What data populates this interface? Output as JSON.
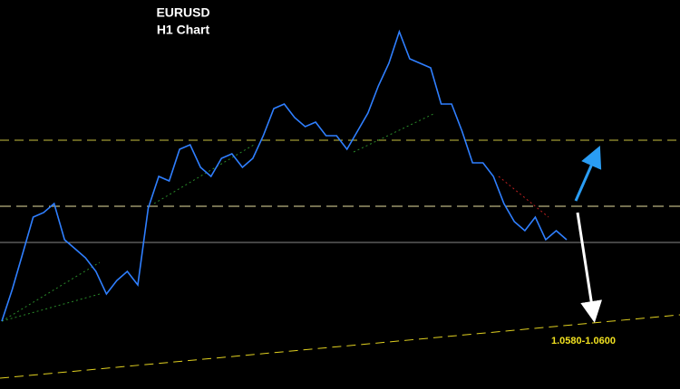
{
  "chart_data": {
    "type": "line",
    "title": "EURUSD",
    "subtitle": "H1 Chart",
    "annotation": "1.0580-1.0600",
    "color": "#2f7fff",
    "ylim": [
      1.0515,
      1.0945
    ],
    "values": [
      1.059,
      1.0625,
      1.0665,
      1.0705,
      1.071,
      1.072,
      1.068,
      1.067,
      1.066,
      1.0645,
      1.062,
      1.0635,
      1.0645,
      1.063,
      1.0715,
      1.075,
      1.0745,
      1.078,
      1.0785,
      1.076,
      1.075,
      1.077,
      1.0775,
      1.076,
      1.077,
      1.0795,
      1.0825,
      1.083,
      1.0815,
      1.0805,
      1.081,
      1.0795,
      1.0795,
      1.078,
      1.08,
      1.082,
      1.085,
      1.0875,
      1.091,
      1.088,
      1.0875,
      1.087,
      1.083,
      1.083,
      1.08,
      1.0765,
      1.0765,
      1.075,
      1.072,
      1.07,
      1.069,
      1.0705,
      1.068,
      1.069,
      1.068
    ]
  }
}
